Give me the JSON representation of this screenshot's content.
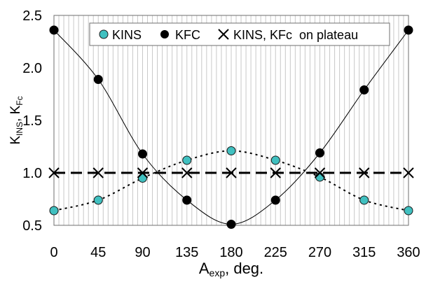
{
  "chart_data": {
    "type": "scatter",
    "xlabel_main": "A",
    "xlabel_sub": "exp",
    "xlabel_rest": ", deg.",
    "ylabel_k": "K",
    "ylabel_sub1": "INS",
    "ylabel_mid": ", K",
    "ylabel_sub2": "Fc",
    "xlim": [
      0,
      360
    ],
    "ylim": [
      0.5,
      2.5
    ],
    "xticks": [
      0,
      45,
      90,
      135,
      180,
      225,
      270,
      315,
      360
    ],
    "xtick_labels": [
      "0",
      "45",
      "90",
      "135",
      "180",
      "225",
      "270",
      "315",
      "360"
    ],
    "yticks": [
      0.5,
      1.0,
      1.5,
      2.0,
      2.5
    ],
    "ytick_labels": [
      "0.5",
      "1.0",
      "1.5",
      "2.0",
      "2.5"
    ],
    "grid": "vertical",
    "legend_position": "top",
    "series": [
      {
        "name": "KINS",
        "marker": "circle",
        "color": "#40C0C0",
        "x": [
          0,
          45,
          90,
          135,
          180,
          225,
          270,
          315,
          360
        ],
        "y": [
          0.64,
          0.74,
          0.95,
          1.12,
          1.21,
          1.12,
          0.96,
          0.74,
          0.64
        ],
        "curve": "dotted"
      },
      {
        "name": "KFC",
        "marker": "circle",
        "color": "#000000",
        "x": [
          0,
          45,
          90,
          135,
          180,
          225,
          270,
          315,
          360
        ],
        "y": [
          2.36,
          1.89,
          1.18,
          0.74,
          0.51,
          0.74,
          1.19,
          1.79,
          2.36
        ],
        "curve": "solid"
      },
      {
        "name": "KINS, KFc  on plateau",
        "marker": "x",
        "color": "#000000",
        "x": [
          0,
          45,
          90,
          135,
          180,
          225,
          270,
          315,
          360
        ],
        "y": [
          1.0,
          1.0,
          1.0,
          1.0,
          1.0,
          1.0,
          1.0,
          1.0,
          1.0
        ],
        "curve": "dashed"
      }
    ]
  }
}
